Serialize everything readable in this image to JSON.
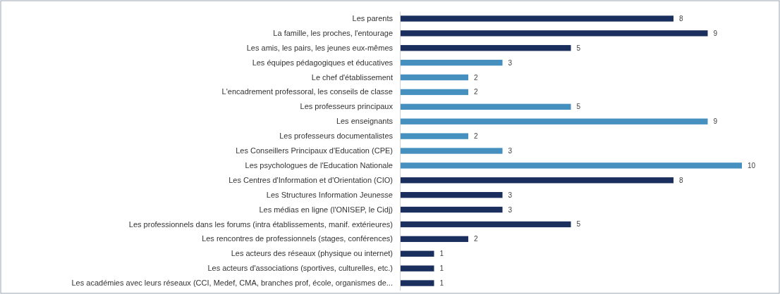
{
  "chart_data": {
    "type": "bar",
    "orientation": "horizontal",
    "data_labels": true,
    "xlim": [
      0,
      10
    ],
    "categories": [
      "Les parents",
      "La famille, les proches, l'entourage",
      "Les amis, les pairs, les jeunes eux-mêmes",
      "Les équipes pédagogiques et éducatives",
      "Le chef d'établissement",
      "L'encadrement professoral, les conseils de classe",
      "Les professeurs principaux",
      "Les enseignants",
      "Les professeurs documentalistes",
      "Les Conseillers Principaux d'Education (CPE)",
      "Les psychologues de l'Education Nationale",
      "Les Centres d'Information et d'Orientation (CIO)",
      "Les Structures Information Jeunesse",
      "Les médias en ligne (l'ONISEP, le Cidj)",
      "Les professionnels dans les forums (intra établissements, manif. extérieures)",
      "Les rencontres de professionnels (stages, conférences)",
      "Les acteurs des réseaux (physique ou internet)",
      "Les acteurs d'associations (sportives, culturelles, etc.)",
      "Les académies avec leurs réseaux (CCI, Medef, CMA, branches prof, école, organismes de..."
    ],
    "values": [
      8,
      9,
      5,
      3,
      2,
      2,
      5,
      9,
      2,
      3,
      10,
      8,
      3,
      3,
      5,
      2,
      1,
      1,
      1
    ],
    "colors": [
      "#1b2f5e",
      "#1b2f5e",
      "#1b2f5e",
      "#4690c0",
      "#4690c0",
      "#4690c0",
      "#4690c0",
      "#4690c0",
      "#4690c0",
      "#4690c0",
      "#4690c0",
      "#1b2f5e",
      "#1b2f5e",
      "#1b2f5e",
      "#1b2f5e",
      "#1b2f5e",
      "#1b2f5e",
      "#1b2f5e",
      "#1b2f5e"
    ]
  }
}
